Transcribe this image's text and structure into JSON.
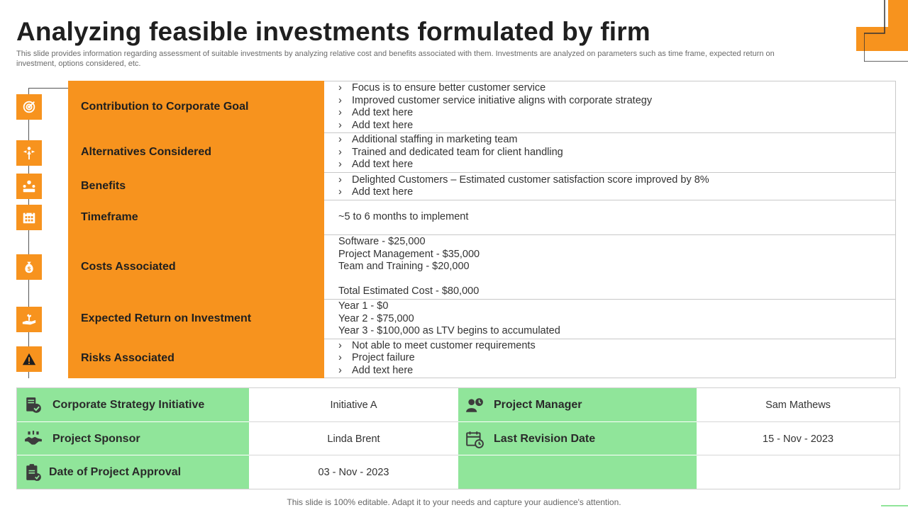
{
  "title": "Analyzing feasible investments formulated by firm",
  "subtitle": "This slide provides information regarding assessment of suitable investments by analyzing relative cost and benefits associated with them. Investments are analyzed on parameters such as time frame, expected return on investment, options considered, etc.",
  "bullet_char": "›",
  "colors": {
    "accent_orange": "#F7931E",
    "accent_green": "#90E59A"
  },
  "rows": [
    {
      "label": "Contribution to Corporate Goal",
      "icon": "target-goal-icon",
      "lines": [
        "Focus is to ensure better customer service",
        "Improved customer service initiative aligns with corporate strategy",
        "Add text here",
        "Add text here"
      ]
    },
    {
      "label": "Alternatives Considered",
      "icon": "person-choice-icon",
      "lines": [
        "Additional  staffing in marketing team",
        "Trained and dedicated team for client handling",
        "Add text here"
      ]
    },
    {
      "label": "Benefits",
      "icon": "team-benefit-icon",
      "lines": [
        "Delighted Customers – Estimated customer satisfaction score improved by 8%",
        "Add text here"
      ]
    },
    {
      "label": "Timeframe",
      "icon": "calendar-icon",
      "text": "~5 to 6 months to implement"
    },
    {
      "label": "Costs Associated",
      "icon": "money-bag-icon",
      "costs": [
        "Software -  $25,000",
        "Project Management - $35,000",
        "Team and Training - $20,000"
      ],
      "total": "Total Estimated Cost - $80,000"
    },
    {
      "label": "Expected Return on Investment",
      "icon": "hand-growth-icon",
      "years": [
        "Year 1 - $0",
        "Year 2 - $75,000",
        "Year 3 - $100,000 as LTV begins to accumulated"
      ]
    },
    {
      "label": "Risks Associated",
      "icon": "warning-icon",
      "lines": [
        "Not able to meet customer requirements",
        "Project failure",
        "Add text here"
      ]
    }
  ],
  "details": {
    "strategy_label": "Corporate Strategy Initiative",
    "strategy_value": "Initiative  A",
    "manager_label": "Project Manager",
    "manager_value": "Sam Mathews",
    "sponsor_label": "Project Sponsor",
    "sponsor_value": "Linda Brent",
    "revision_label": "Last Revision Date",
    "revision_value": "15 - Nov - 2023",
    "approval_label": "Date of Project Approval",
    "approval_value": "03 - Nov - 2023"
  },
  "footer": "This slide is 100% editable. Adapt it to your needs and capture your audience's attention."
}
